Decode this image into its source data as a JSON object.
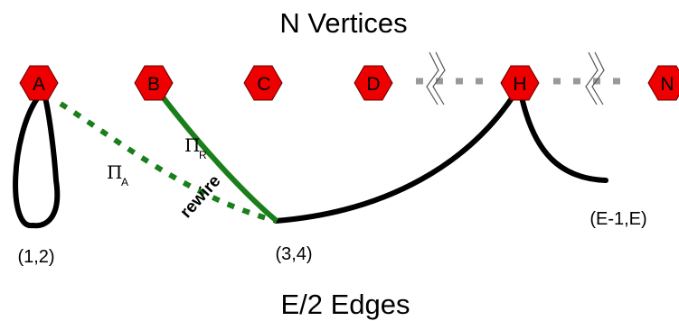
{
  "title_top": "N Vertices",
  "title_bottom": "E/2 Edges",
  "vertices": {
    "a": "A",
    "b": "B",
    "c": "C",
    "d": "D",
    "h": "H",
    "n": "N"
  },
  "edge_labels": {
    "e12": "(1,2)",
    "e34": "(3,4)",
    "eE": "(E-1,E)"
  },
  "pi_symbol": "Π",
  "pi_r_sub": "R",
  "pi_a_sub": "A",
  "rewire_label": "rewire",
  "colors": {
    "vertex_fill": "#ee0000",
    "edge_black": "#000000",
    "edge_green": "#1a7f1a",
    "ellipsis_gray": "#999999"
  }
}
